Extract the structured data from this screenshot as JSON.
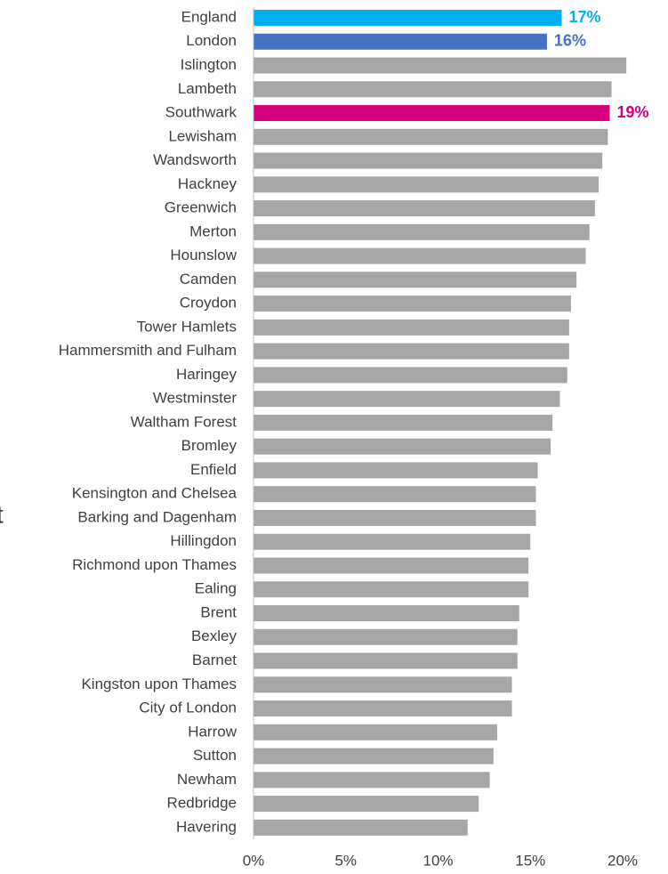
{
  "chart_data": {
    "type": "hbar",
    "annotation": "t",
    "categories": [
      "England",
      "London",
      "Islington",
      "Lambeth",
      "Southwark",
      "Lewisham",
      "Wandsworth",
      "Hackney",
      "Greenwich",
      "Merton",
      "Hounslow",
      "Camden",
      "Croydon",
      "Tower Hamlets",
      "Hammersmith and Fulham",
      "Haringey",
      "Westminster",
      "Waltham Forest",
      "Bromley",
      "Enfield",
      "Kensington and Chelsea",
      "Barking and Dagenham",
      "Hillingdon",
      "Richmond upon Thames",
      "Ealing",
      "Brent",
      "Bexley",
      "Barnet",
      "Kingston upon Thames",
      "City of London",
      "Harrow",
      "Sutton",
      "Newham",
      "Redbridge",
      "Havering"
    ],
    "values": [
      16.7,
      15.9,
      20.2,
      19.4,
      19.3,
      19.2,
      18.9,
      18.7,
      18.5,
      18.2,
      18.0,
      17.5,
      17.2,
      17.1,
      17.1,
      17.0,
      16.6,
      16.2,
      16.1,
      15.4,
      15.3,
      15.3,
      15.0,
      14.9,
      14.9,
      14.4,
      14.3,
      14.3,
      14.0,
      14.0,
      13.2,
      13.0,
      12.8,
      12.2,
      11.6
    ],
    "value_labels": [
      "17%",
      "16%",
      null,
      null,
      "19%",
      null,
      null,
      null,
      null,
      null,
      null,
      null,
      null,
      null,
      null,
      null,
      null,
      null,
      null,
      null,
      null,
      null,
      null,
      null,
      null,
      null,
      null,
      null,
      null,
      null,
      null,
      null,
      null,
      null,
      null
    ],
    "colors": [
      "#00b0f0",
      "#4472c4",
      "#a6a6a6",
      "#a6a6a6",
      "#d6007e",
      "#a6a6a6",
      "#a6a6a6",
      "#a6a6a6",
      "#a6a6a6",
      "#a6a6a6",
      "#a6a6a6",
      "#a6a6a6",
      "#a6a6a6",
      "#a6a6a6",
      "#a6a6a6",
      "#a6a6a6",
      "#a6a6a6",
      "#a6a6a6",
      "#a6a6a6",
      "#a6a6a6",
      "#a6a6a6",
      "#a6a6a6",
      "#a6a6a6",
      "#a6a6a6",
      "#a6a6a6",
      "#a6a6a6",
      "#a6a6a6",
      "#a6a6a6",
      "#a6a6a6",
      "#a6a6a6",
      "#a6a6a6",
      "#a6a6a6",
      "#a6a6a6",
      "#a6a6a6",
      "#a6a6a6"
    ],
    "xlim": [
      0,
      20
    ],
    "xticks": [
      {
        "value": 0,
        "label": "0%"
      },
      {
        "value": 5,
        "label": "5%"
      },
      {
        "value": 10,
        "label": "10%"
      },
      {
        "value": 15,
        "label": "15%"
      },
      {
        "value": 20,
        "label": "20%"
      }
    ],
    "grid": false
  }
}
